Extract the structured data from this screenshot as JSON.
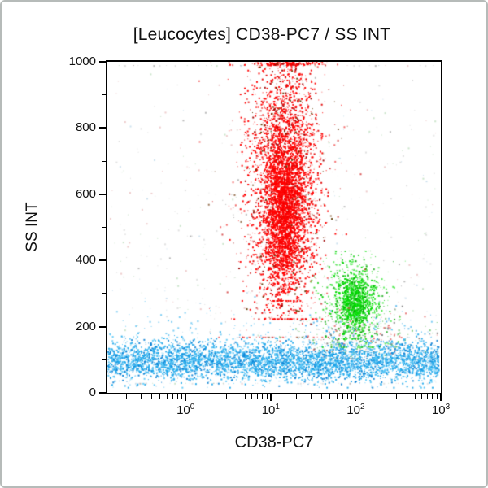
{
  "window": {
    "background": "#ffffff",
    "border_color": "#b6bbb9"
  },
  "chart_data": {
    "type": "scatter",
    "variant": "flow-cytometry-dot-plot",
    "title": "[Leucocytes] CD38-PC7 / SS INT",
    "xlabel": "CD38-PC7",
    "ylabel": "SS INT",
    "grid": false,
    "axis_color": "#000000",
    "x_scale": "log",
    "x_decades_range": [
      -0.92,
      3.0
    ],
    "x_major_ticks": [
      {
        "decade": 0,
        "base": "10",
        "exp": "0"
      },
      {
        "decade": 1,
        "base": "10",
        "exp": "1"
      },
      {
        "decade": 2,
        "base": "10",
        "exp": "2"
      },
      {
        "decade": 3,
        "base": "10",
        "exp": "3"
      }
    ],
    "y_range": [
      0,
      1000
    ],
    "y_major_ticks": [
      0,
      200,
      400,
      600,
      800,
      1000
    ],
    "y_minor_ticks": [
      100,
      300,
      500,
      700,
      900
    ],
    "seed": 42,
    "populations": [
      {
        "name": "background-noise",
        "count": 550,
        "alpha": 0.5,
        "size_mix": 0.35,
        "x": {
          "type": "uniform-log",
          "min": -0.9,
          "max": 2.95
        },
        "y": {
          "type": "gauss",
          "mean": 480,
          "sd": 330,
          "clampMin": 30,
          "clampMax": 990
        },
        "colors": [
          {
            "c": "#c4c4c4",
            "w": 0.35
          },
          {
            "c": "#dd9999",
            "w": 0.2
          },
          {
            "c": "#99cc99",
            "w": 0.2
          },
          {
            "c": "#9ec6e0",
            "w": 0.15
          },
          {
            "c": "#777777",
            "w": 0.1
          }
        ]
      },
      {
        "name": "mixed-debris-right",
        "count": 420,
        "alpha": 0.75,
        "size_mix": 0.45,
        "x": {
          "type": "gauss-log",
          "mean": 2.05,
          "sd": 0.42,
          "clampMin": 1.1,
          "clampMax": 2.95
        },
        "y": {
          "type": "gauss",
          "mean": 168,
          "sd": 45,
          "clampMin": 105,
          "clampMax": 265
        },
        "colors": [
          {
            "c": "#e05555",
            "w": 0.28
          },
          {
            "c": "#55bb55",
            "w": 0.27
          },
          {
            "c": "#3baae8",
            "w": 0.25
          },
          {
            "c": "#666666",
            "w": 0.2
          }
        ]
      },
      {
        "name": "blue-population-low-ss",
        "count": 4600,
        "alpha": 0.9,
        "size_mix": 0.6,
        "x": {
          "type": "uniform-log",
          "min": -0.92,
          "max": 2.97
        },
        "y": {
          "type": "gauss",
          "mean": 97,
          "sd": 29,
          "clampMin": 18,
          "clampMax": 205
        },
        "colors": [
          {
            "c": "#1fa7ea",
            "w": 0.5
          },
          {
            "c": "#5cc9f7",
            "w": 0.3
          },
          {
            "c": "#0a7fd4",
            "w": 0.2
          }
        ]
      },
      {
        "name": "blue-sparse-upper",
        "count": 140,
        "alpha": 0.7,
        "size_mix": 0.4,
        "x": {
          "type": "uniform-log",
          "min": -0.9,
          "max": 2.9
        },
        "y": {
          "type": "gauss",
          "mean": 185,
          "sd": 45,
          "clampMin": 140,
          "clampMax": 330
        },
        "colors": [
          {
            "c": "#49b9ef",
            "w": 1
          }
        ]
      },
      {
        "name": "green-population-fringe",
        "count": 480,
        "alpha": 0.8,
        "size_mix": 0.5,
        "x": {
          "type": "gauss-log",
          "mean": 1.97,
          "sd": 0.21,
          "clampMin": 1.35,
          "clampMax": 2.6
        },
        "y": {
          "type": "gauss",
          "mean": 272,
          "sd": 78,
          "clampMin": 140,
          "clampMax": 430
        },
        "colors": [
          {
            "c": "#4ce84c",
            "w": 0.5
          },
          {
            "c": "#17cf17",
            "w": 0.3
          },
          {
            "c": "#0aa50a",
            "w": 0.2
          }
        ]
      },
      {
        "name": "green-population-core",
        "count": 950,
        "alpha": 0.92,
        "size_mix": 0.6,
        "x": {
          "type": "gauss-log",
          "mean": 1.98,
          "sd": 0.11,
          "clampMin": 1.6,
          "clampMax": 2.35
        },
        "y": {
          "type": "gauss",
          "mean": 274,
          "sd": 44,
          "clampMin": 165,
          "clampMax": 400
        },
        "colors": [
          {
            "c": "#00db00",
            "w": 0.6
          },
          {
            "c": "#3fe83f",
            "w": 0.2
          },
          {
            "c": "#00ad00",
            "w": 0.2
          }
        ]
      },
      {
        "name": "red-population-halo",
        "count": 450,
        "alpha": 0.75,
        "size_mix": 0.45,
        "x": {
          "type": "gauss-log",
          "mean": 1.16,
          "sd": 0.33,
          "clampMin": 0.15,
          "clampMax": 2.1
        },
        "y": {
          "type": "gauss",
          "mean": 620,
          "sd": 265,
          "clampMin": 170,
          "clampMax": 1000,
          "pileTop": true
        },
        "colors": [
          {
            "c": "#f04040",
            "w": 0.6
          },
          {
            "c": "#cc2222",
            "w": 0.25
          },
          {
            "c": "#7a4a20",
            "w": 0.15
          }
        ]
      },
      {
        "name": "red-population-main",
        "count": 3100,
        "alpha": 0.95,
        "size_mix": 0.6,
        "x": {
          "type": "gauss-log",
          "mean": 1.16,
          "sd": 0.2,
          "clampMin": 0.35,
          "clampMax": 1.95
        },
        "y": {
          "type": "gauss",
          "mean": 645,
          "sd": 200,
          "clampMin": 225,
          "clampMax": 1000,
          "pileTop": true
        },
        "colors": [
          {
            "c": "#ff0000",
            "w": 0.78
          },
          {
            "c": "#e00000",
            "w": 0.12
          },
          {
            "c": "#9c0000",
            "w": 0.06
          },
          {
            "c": "#5f3a00",
            "w": 0.04
          }
        ]
      },
      {
        "name": "red-population-core",
        "count": 1900,
        "alpha": 0.97,
        "size_mix": 0.65,
        "x": {
          "type": "gauss-log",
          "mean": 1.15,
          "sd": 0.11,
          "clampMin": 0.7,
          "clampMax": 1.7
        },
        "y": {
          "type": "gauss",
          "mean": 545,
          "sd": 115,
          "clampMin": 280,
          "clampMax": 1000,
          "pileTop": false
        },
        "colors": [
          {
            "c": "#ff0000",
            "w": 0.9
          },
          {
            "c": "#e60000",
            "w": 0.1
          }
        ]
      }
    ]
  }
}
